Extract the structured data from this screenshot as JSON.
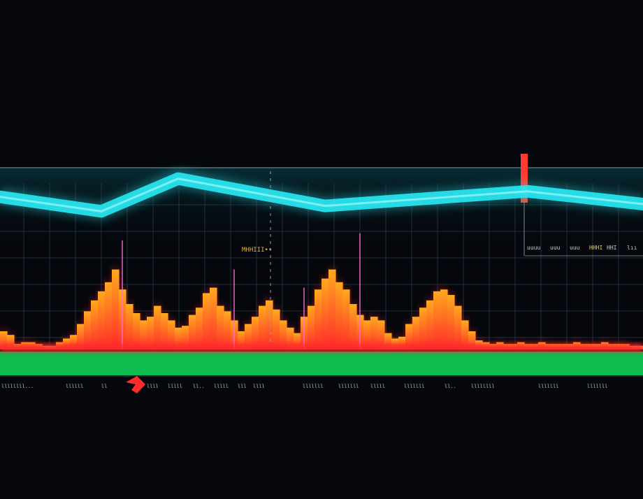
{
  "colors": {
    "background": "#05070c",
    "line": "#27e6f0",
    "bar_low": "#ff2a2a",
    "bar_high": "#ffa91e",
    "baseline_band": "#0dbb4f",
    "grid": "#2a3b4a",
    "marker": "#ff3b30",
    "spike": "#ff6fd8"
  },
  "chart_data": {
    "type": "bar",
    "title": "",
    "xlabel": "",
    "ylabel": "",
    "grid": true,
    "legend": "none",
    "ylim": [
      0,
      100
    ],
    "x": [
      0,
      1,
      2,
      3,
      4,
      5,
      6,
      7,
      8,
      9,
      10,
      11,
      12,
      13,
      14,
      15,
      16,
      17,
      18,
      19,
      20,
      21,
      22,
      23,
      24,
      25,
      26,
      27,
      28,
      29,
      30,
      31,
      32,
      33,
      34,
      35,
      36,
      37,
      38,
      39,
      40,
      41,
      42,
      43,
      44,
      45,
      46,
      47,
      48,
      49,
      50,
      51,
      52,
      53,
      54,
      55,
      56,
      57,
      58,
      59,
      60,
      61,
      62,
      63,
      64,
      65,
      66,
      67,
      68,
      69,
      70,
      71,
      72,
      73,
      74,
      75,
      76,
      77,
      78,
      79,
      80,
      81,
      82,
      83,
      84,
      85,
      86,
      87,
      88,
      89,
      90,
      91
    ],
    "series": [
      {
        "kind": "bar",
        "values": [
          10,
          8,
          3,
          4,
          4,
          3,
          2,
          2,
          4,
          6,
          8,
          14,
          21,
          27,
          32,
          37,
          44,
          33,
          25,
          20,
          16,
          18,
          24,
          20,
          16,
          12,
          13,
          19,
          23,
          31,
          34,
          24,
          21,
          16,
          10,
          14,
          18,
          24,
          27,
          22,
          16,
          12,
          9,
          18,
          24,
          33,
          39,
          44,
          37,
          33,
          25,
          19,
          16,
          18,
          16,
          9,
          6,
          7,
          14,
          18,
          23,
          27,
          32,
          33,
          30,
          24,
          16,
          10,
          5,
          4,
          3,
          4,
          3,
          3,
          4,
          3,
          3,
          4,
          3,
          3,
          3,
          3,
          4,
          3,
          3,
          3,
          4,
          3,
          3,
          3,
          2,
          2
        ],
        "spikes": [
          {
            "x": 17,
            "value": 60
          },
          {
            "x": 33,
            "value": 44
          },
          {
            "x": 43,
            "value": 34
          },
          {
            "x": 51,
            "value": 64
          }
        ]
      },
      {
        "kind": "line",
        "x": [
          0,
          14,
          25,
          46,
          75,
          91
        ],
        "values": [
          84,
          76,
          94,
          79,
          87,
          80
        ]
      }
    ],
    "marker": {
      "x": 75
    }
  },
  "readouts": {
    "left": "MHHIII••",
    "right_1": "uuuu",
    "right_2": "uuu",
    "right_3": "uuu",
    "right_4": "HHHI",
    "right_5": "HHI",
    "right_6": "lıı"
  },
  "ticks": [
    "llllllll...",
    "llllll",
    "ll",
    "llll",
    "lllll",
    "ll..",
    "lllll",
    "lll",
    "llll",
    "lllllll",
    "lllllll",
    "lllll",
    "lllllll",
    "ll..",
    "llllllll",
    "lllllll",
    "lllllll"
  ]
}
